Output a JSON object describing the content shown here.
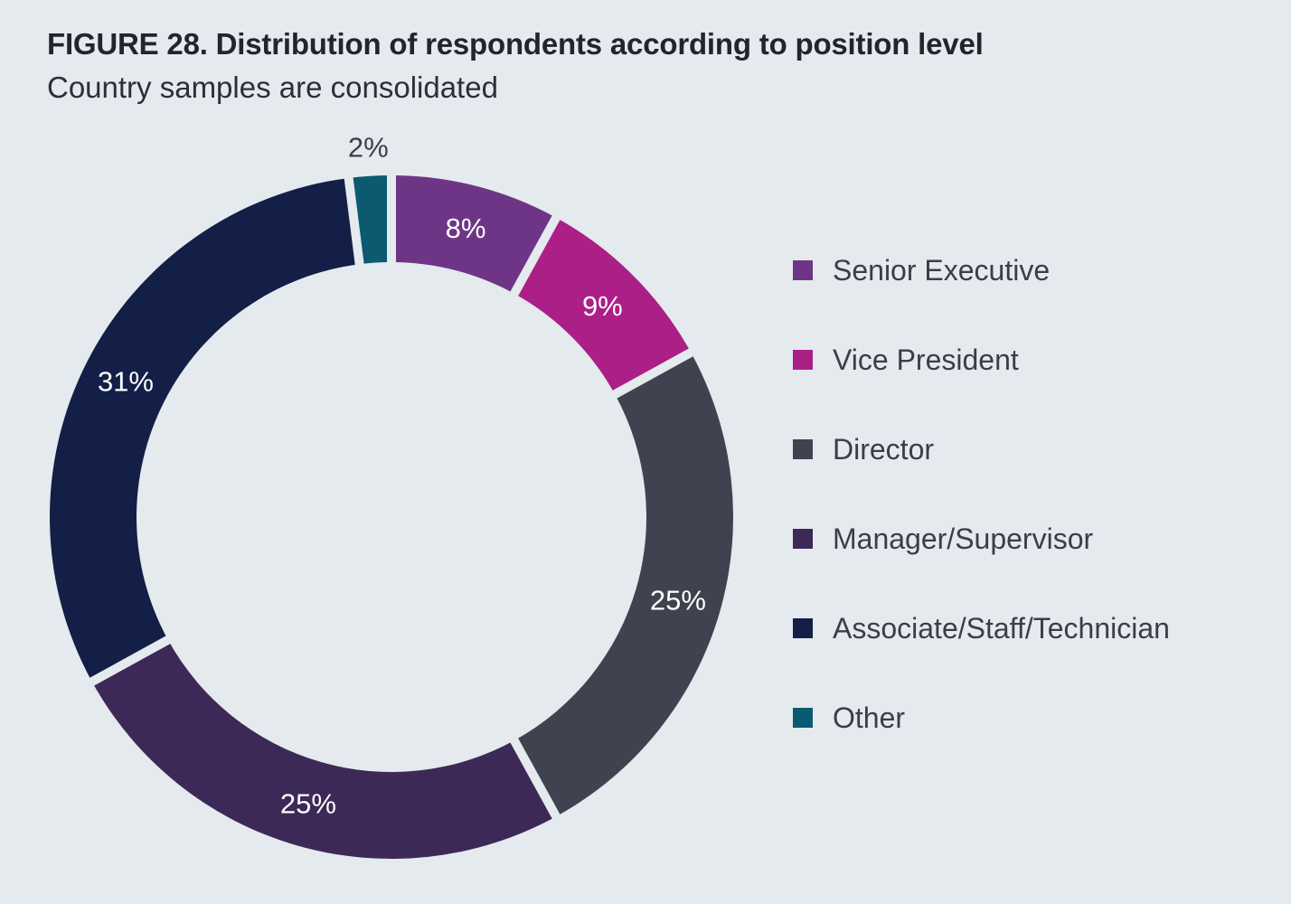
{
  "header": {
    "title": "FIGURE 28. Distribution of respondents according to position level",
    "subtitle": "Country samples are consolidated"
  },
  "chart_data": {
    "type": "pie",
    "variant": "donut",
    "title": "FIGURE 28. Distribution of respondents according to position level",
    "subtitle": "Country samples are consolidated",
    "categories": [
      "Senior Executive",
      "Vice President",
      "Director",
      "Manager/Supervisor",
      "Associate/Staff/Technician",
      "Other"
    ],
    "values": [
      8,
      9,
      25,
      25,
      31,
      2
    ],
    "labels": [
      "8%",
      "9%",
      "25%",
      "25%",
      "31%",
      "2%"
    ],
    "unit": "%",
    "colors": [
      "#6e3587",
      "#ab1f87",
      "#3e434f",
      "#3d2957",
      "#131f47",
      "#0c5a70"
    ],
    "legend_position": "right"
  }
}
